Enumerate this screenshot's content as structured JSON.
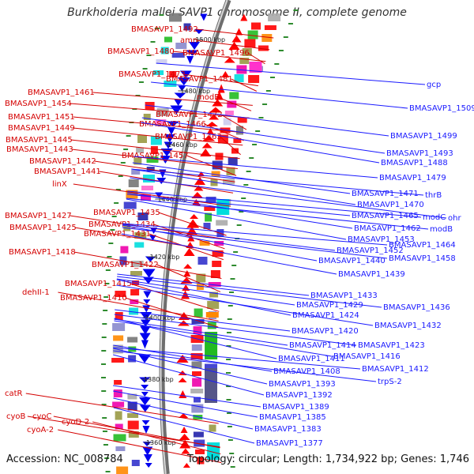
{
  "title": "Burkholderia mallei SAVP1 chromosome II, complete genome",
  "accession": "Accession: NC_008784",
  "summary": "Topology: circular; Length: 1,734,922 bp; Genes: 1,746",
  "colors": {
    "forward_label": "#d40000",
    "reverse_label": "#1a1aff",
    "backbone": "#888888",
    "tick": "#2e8b2e"
  },
  "kbp_ticks": [
    "1500 kbp",
    "1480 kbp",
    "1460 kbp",
    "1440 kbp",
    "1420 kbp",
    "1400 kbp",
    "1380 kbp",
    "1360 kbp"
  ],
  "left_labels": [
    "BMASAVP1_1492",
    "amn",
    "BMASAVP1_1480",
    "BMASAVP1_1496",
    "BMASAVP1_1473",
    "BMASAVP1_1481",
    "BMASAVP1_1461",
    "modE",
    "BMASAVP1_1454",
    "BMASAVP1_1472",
    "BMASAVP1_1451",
    "BMASAVP1_1466",
    "BMASAVP1_1449",
    "BMASAVP1_1463",
    "BMASAVP1_1445",
    "BMASAVP1_1443",
    "BMASAVP1_1457",
    "BMASAVP1_1442",
    "BMASAVP1_1441",
    "linX",
    "BMASAVP1_1435",
    "BMASAVP1_1427",
    "BMASAVP1_1434",
    "BMASAVP1_1425",
    "BMASAVP1_1431",
    "BMASAVP1_1418",
    "BMASAVP1_1422",
    "BMASAVP1_1415",
    "dehII-1",
    "BMASAVP1_1410",
    "catR",
    "cyoB",
    "cyoC",
    "cyoD-2",
    "cyoA-2"
  ],
  "right_labels": [
    "gcp",
    "BMASAVP1_1509",
    "BMASAVP1_1499",
    "BMASAVP1_1493",
    "BMASAVP1_1488",
    "BMASAVP1_1479",
    "thrB",
    "BMASAVP1_1471",
    "BMASAVP1_1470",
    "ohr",
    "BMASAVP1_1465",
    "modC",
    "modB",
    "BMASAVP1_1462",
    "BMASAVP1_1453",
    "BMASAVP1_1464",
    "BMASAVP1_1452",
    "BMASAVP1_1458",
    "BMASAVP1_1440",
    "BMASAVP1_1439",
    "BMASAVP1_1433",
    "BMASAVP1_1429",
    "BMASAVP1_1436",
    "BMASAVP1_1424",
    "BMASAVP1_1432",
    "BMASAVP1_1420",
    "BMASAVP1_1414",
    "BMASAVP1_1423",
    "BMASAVP1_1416",
    "BMASAVP1_1411",
    "BMASAVP1_1412",
    "BMASAVP1_1408",
    "trpS-2",
    "BMASAVP1_1393",
    "BMASAVP1_1392",
    "BMASAVP1_1389",
    "BMASAVP1_1385",
    "BMASAVP1_1383",
    "BMASAVP1_1377"
  ]
}
